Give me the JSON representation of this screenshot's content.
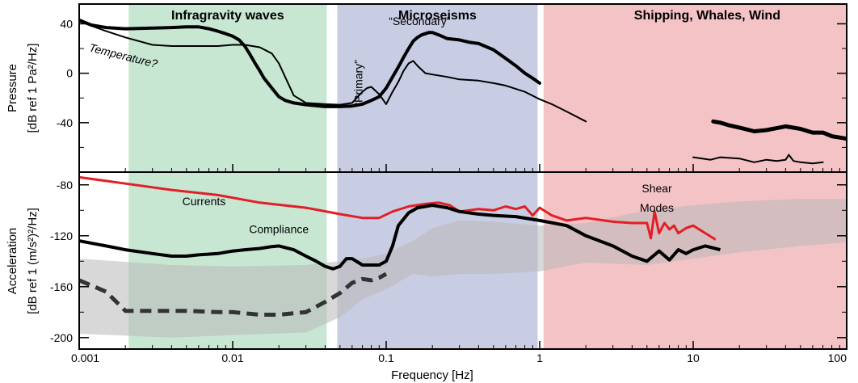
{
  "chart_data": [
    {
      "type": "line",
      "panel": "pressure",
      "ylabel_line1": "Pressure",
      "ylabel_line2": "[dB ref 1 Pa²/Hz]",
      "xscale": "log",
      "xlim": [
        0.001,
        100
      ],
      "ylim": [
        -80,
        56
      ],
      "yticks": [
        40,
        0,
        -40
      ],
      "ytick_labels": [
        "40",
        "0",
        "-40"
      ],
      "bands": [
        {
          "name": "Infragravity waves",
          "from": 0.0021,
          "to": 0.041,
          "color": "#c7e7d3"
        },
        {
          "name": "Microseisms",
          "from": 0.048,
          "to": 0.97,
          "color": "#c9cde3"
        },
        {
          "name": "Shipping, Whales, Wind",
          "from": 1.06,
          "to": 100,
          "color": "#f4c3c6"
        }
      ],
      "annotations": [
        {
          "text": "Temperature?",
          "x": 0.00115,
          "y": 18
        },
        {
          "text": "“Primary”",
          "x": 0.07,
          "y": -8
        },
        {
          "text": "“Secondary”",
          "x": 0.165,
          "y": 39
        }
      ],
      "series": [
        {
          "label": "thick",
          "color": "#000000",
          "width": 4,
          "x": [
            0.001,
            0.0012,
            0.0015,
            0.002,
            0.003,
            0.004,
            0.005,
            0.006,
            0.007,
            0.008,
            0.009,
            0.01,
            0.011,
            0.012,
            0.013,
            0.014,
            0.015,
            0.016,
            0.018,
            0.02,
            0.022,
            0.025,
            0.03,
            0.04,
            0.05,
            0.06,
            0.07,
            0.08,
            0.09,
            0.1,
            0.11,
            0.12,
            0.13,
            0.14,
            0.15,
            0.16,
            0.17,
            0.18,
            0.19,
            0.2,
            0.22,
            0.25,
            0.3,
            0.35,
            0.4,
            0.5,
            0.6,
            0.7,
            0.8,
            0.9,
            1.0
          ],
          "y": [
            43,
            39,
            37,
            36,
            36.5,
            37,
            37.5,
            37.5,
            36,
            34,
            32,
            30,
            27,
            22,
            15,
            8,
            2,
            -4,
            -12,
            -19,
            -22,
            -24,
            -25.5,
            -27,
            -27,
            -26.5,
            -25,
            -22,
            -19,
            -12,
            -3,
            5,
            13,
            20,
            26,
            29,
            31,
            32,
            33,
            33,
            31,
            28,
            27,
            25,
            24,
            19,
            12,
            6,
            0,
            -4,
            -8
          ]
        },
        {
          "label": "thin",
          "color": "#000000",
          "width": 2,
          "x": [
            0.001,
            0.0015,
            0.002,
            0.003,
            0.004,
            0.005,
            0.006,
            0.008,
            0.01,
            0.012,
            0.015,
            0.018,
            0.02,
            0.025,
            0.03,
            0.04,
            0.05,
            0.06,
            0.07,
            0.075,
            0.08,
            0.09,
            0.1,
            0.11,
            0.12,
            0.13,
            0.14,
            0.15,
            0.16,
            0.18,
            0.2,
            0.25,
            0.3,
            0.4,
            0.5,
            0.6,
            0.8,
            1.0,
            1.2,
            1.5,
            2.0
          ],
          "y": [
            42,
            34,
            29,
            23,
            22,
            22,
            22,
            22,
            23,
            23,
            21,
            16,
            8,
            -18,
            -24,
            -25,
            -25.5,
            -24,
            -15,
            -12,
            -11,
            -17,
            -25,
            -15,
            -7,
            2,
            8,
            10,
            6,
            0,
            -1,
            -3,
            -5,
            -6,
            -8,
            -10,
            -15,
            -21,
            -25,
            -31,
            -39
          ]
        },
        {
          "label": "high-thick",
          "color": "#000000",
          "width": 5,
          "x": [
            13.5,
            15,
            17,
            20,
            25,
            30,
            40,
            50,
            60,
            70,
            80,
            90,
            100
          ],
          "y": [
            -39,
            -40,
            -42,
            -44,
            -47,
            -46,
            -43,
            -45,
            -48,
            -48,
            -51,
            -52,
            -53
          ]
        },
        {
          "label": "high-thin",
          "color": "#000000",
          "width": 2,
          "x": [
            10,
            13,
            15,
            20,
            25,
            30,
            35,
            40,
            42,
            45,
            50,
            60,
            70
          ],
          "y": [
            -68,
            -70,
            -68,
            -69,
            -72,
            -70,
            -71,
            -70,
            -66,
            -71,
            -72,
            -73,
            -72
          ]
        }
      ]
    },
    {
      "type": "line",
      "panel": "acceleration",
      "ylabel_line1": "Acceleration",
      "ylabel_line2": "[dB ref 1 (m/s²)²/Hz]",
      "xlabel": "Frequency [Hz]",
      "xscale": "log",
      "xlim": [
        0.001,
        100
      ],
      "ylim": [
        -209,
        -70
      ],
      "xticks": [
        0.001,
        0.01,
        0.1,
        1,
        10,
        100
      ],
      "xtick_labels": [
        "0.001",
        "0.01",
        "0.1",
        "1",
        "10",
        "100"
      ],
      "yticks": [
        -80,
        -120,
        -160,
        -200
      ],
      "ytick_labels": [
        "-80",
        "-120",
        "-160",
        "-200"
      ],
      "annotations": [
        {
          "text": "Currents",
          "x": 0.0065,
          "y": -96
        },
        {
          "text": "Compliance",
          "x": 0.02,
          "y": -118
        },
        {
          "text": "Shear",
          "x": 5.8,
          "y": -86
        },
        {
          "text": "Modes",
          "x": 5.8,
          "y": -101
        }
      ],
      "bands_shaded": [
        {
          "label": "grey-noise",
          "color": "#b8b8b8",
          "opacity": 0.55,
          "upper_x": [
            0.001,
            0.004,
            0.01,
            0.03,
            0.05,
            0.07,
            0.1,
            0.15,
            0.2,
            0.3,
            0.5,
            1,
            2,
            5,
            10,
            20,
            50,
            100
          ],
          "upper_y": [
            -138,
            -143,
            -144,
            -143,
            -140,
            -138,
            -134,
            -124,
            -114,
            -108,
            -109,
            -112,
            -110,
            -100,
            -96,
            -93,
            -91,
            -91
          ],
          "lower_x": [
            100,
            50,
            20,
            10,
            5,
            2,
            1,
            0.5,
            0.3,
            0.2,
            0.15,
            0.1,
            0.07,
            0.05,
            0.03,
            0.01,
            0.004,
            0.001
          ],
          "lower_y": [
            -125,
            -128,
            -133,
            -138,
            -143,
            -141,
            -148,
            -150,
            -150,
            -152,
            -150,
            -162,
            -170,
            -184,
            -196,
            -198,
            -200,
            -197
          ]
        }
      ],
      "series": [
        {
          "label": "Currents",
          "color": "#e21f26",
          "width": 3,
          "x": [
            0.001,
            0.002,
            0.004,
            0.008,
            0.015,
            0.03,
            0.05,
            0.07,
            0.09,
            0.11,
            0.14,
            0.18,
            0.22,
            0.26,
            0.3,
            0.4,
            0.5,
            0.6,
            0.7,
            0.8,
            0.9,
            1.0,
            1.2,
            1.5,
            2,
            3,
            4,
            5,
            5.3,
            5.6,
            6,
            6.5,
            7,
            7.5,
            8,
            9,
            10,
            12,
            14
          ],
          "y": [
            -74,
            -79,
            -84,
            -88,
            -94,
            -98,
            -103,
            -106,
            -106,
            -101,
            -97,
            -95,
            -94,
            -96,
            -101,
            -99,
            -100,
            -97,
            -99,
            -97,
            -104,
            -98,
            -104,
            -108,
            -106,
            -109,
            -110,
            -110,
            -122,
            -101,
            -118,
            -110,
            -115,
            -112,
            -118,
            -114,
            -112,
            -118,
            -123
          ]
        },
        {
          "label": "Compliance",
          "color": "#000000",
          "width": 4,
          "x": [
            0.001,
            0.0015,
            0.002,
            0.003,
            0.004,
            0.005,
            0.006,
            0.008,
            0.01,
            0.012,
            0.015,
            0.018,
            0.02,
            0.025,
            0.03,
            0.035,
            0.04,
            0.045,
            0.05,
            0.055,
            0.06,
            0.07,
            0.08,
            0.09,
            0.1,
            0.11,
            0.12,
            0.14,
            0.16,
            0.18,
            0.2,
            0.25,
            0.3,
            0.4,
            0.5,
            0.7,
            1.0,
            1.5,
            2,
            3,
            4,
            5,
            6,
            7,
            8,
            9,
            10,
            12,
            15
          ],
          "y": [
            -124,
            -128,
            -131,
            -134,
            -136,
            -136,
            -135,
            -134,
            -132,
            -131,
            -130,
            -128.5,
            -128,
            -131,
            -136,
            -140,
            -144,
            -146,
            -144,
            -138,
            -138,
            -143,
            -143,
            -143,
            -140,
            -128,
            -112,
            -102,
            -98,
            -97,
            -96,
            -98,
            -101,
            -103,
            -104,
            -105,
            -108,
            -112,
            -120,
            -128,
            -136,
            -140,
            -132,
            -139,
            -131,
            -134,
            -131,
            -128,
            -131
          ]
        },
        {
          "label": "dashed",
          "color": "#333333",
          "width": 5,
          "dash": true,
          "x": [
            0.001,
            0.0015,
            0.002,
            0.003,
            0.005,
            0.008,
            0.01,
            0.015,
            0.02,
            0.03,
            0.04,
            0.05,
            0.06,
            0.07,
            0.08,
            0.09,
            0.1
          ],
          "y": [
            -155,
            -164,
            -179,
            -179,
            -179,
            -180,
            -180,
            -182,
            -182,
            -180,
            -172,
            -165,
            -157,
            -154,
            -155,
            -153,
            -150
          ]
        }
      ]
    }
  ]
}
